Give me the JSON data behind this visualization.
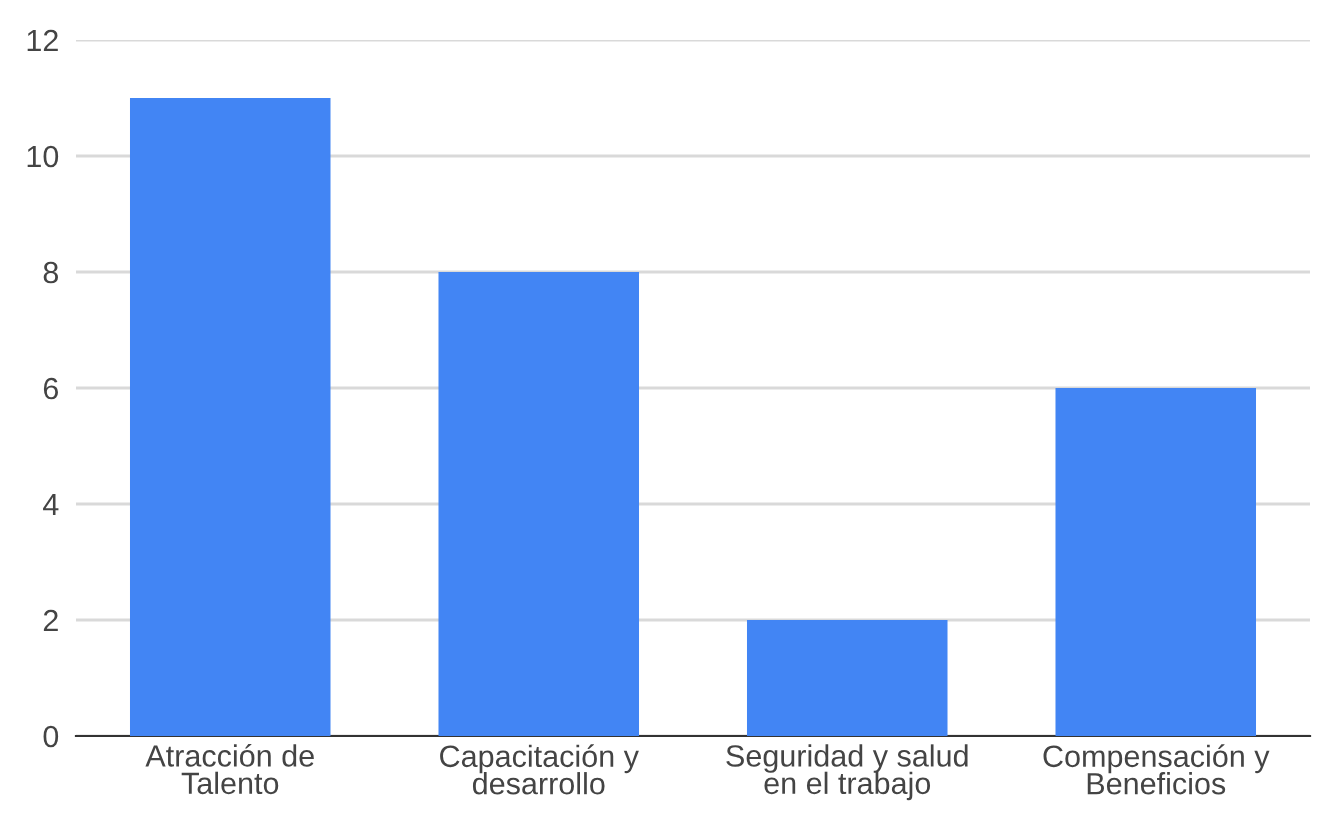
{
  "chart_data": {
    "type": "bar",
    "categories": [
      "Atracción de\nTalento",
      "Capacitación y\ndesarrollo",
      "Seguridad y salud\nen el trabajo",
      "Compensación y\nBeneficios"
    ],
    "values": [
      11,
      8,
      2,
      6
    ],
    "color": "#4285f4",
    "ylim": [
      0,
      12
    ],
    "yticks": [
      0,
      2,
      4,
      6,
      8,
      10,
      12
    ],
    "grid": "y"
  }
}
